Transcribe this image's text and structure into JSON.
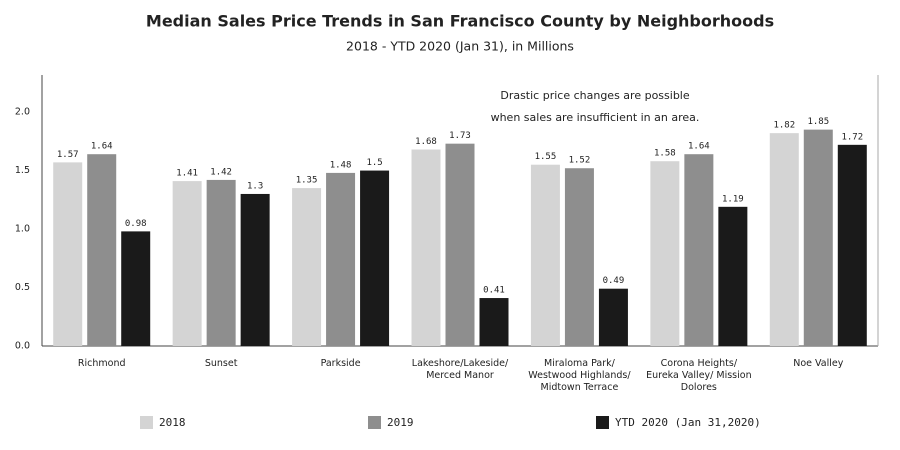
{
  "chart_data": {
    "type": "bar",
    "title": "Median Sales Price Trends in San Francisco County by Neighborhoods",
    "subtitle": "2018 - YTD 2020 (Jan 31), in Millions",
    "annotation": [
      "Drastic price changes are possible",
      "when sales are insufficient in an area."
    ],
    "categories": [
      "Richmond",
      "Sunset",
      "Parkside",
      "Lakeshore/Lakeside/ Merced Manor",
      "Miraloma Park/ Westwood Highlands/ Midtown Terrace",
      "Corona Heights/ Eureka Valley/ Mission Dolores",
      "Noe Valley"
    ],
    "series": [
      {
        "name": "2018",
        "color": "#d4d4d4",
        "values": [
          1.57,
          1.41,
          1.35,
          1.68,
          1.55,
          1.58,
          1.82
        ]
      },
      {
        "name": "2019",
        "color": "#8e8e8e",
        "values": [
          1.64,
          1.42,
          1.48,
          1.73,
          1.52,
          1.64,
          1.85
        ]
      },
      {
        "name": "YTD 2020 (Jan 31,2020)",
        "color": "#1a1a1a",
        "values": [
          0.98,
          1.3,
          1.5,
          0.41,
          0.49,
          1.19,
          1.72
        ]
      }
    ],
    "ylim": [
      0,
      2.3
    ],
    "yticks": [
      {
        "value": 0,
        "label": "0.0"
      },
      {
        "value": 0.5,
        "label": "0.5"
      },
      {
        "value": 1,
        "label": "1.0"
      },
      {
        "value": 1.5,
        "label": "1.5"
      },
      {
        "value": 2,
        "label": "2.0"
      }
    ],
    "legend": "bottom"
  }
}
